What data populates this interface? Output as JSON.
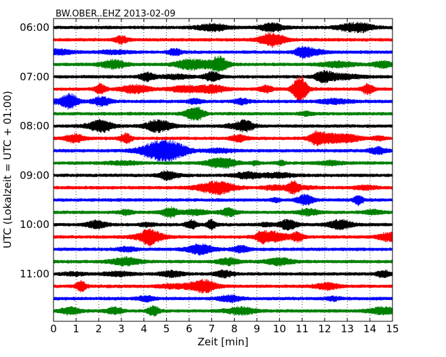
{
  "chart_data": {
    "type": "line",
    "title": "BW.OBER..EHZ 2013-02-09",
    "xlabel": "Zeit  [min]",
    "ylabel": "UTC (Lokalzeit = UTC + 01:00)",
    "xlim": [
      0,
      15
    ],
    "x_ticks": [
      0,
      1,
      2,
      3,
      4,
      5,
      6,
      7,
      8,
      9,
      10,
      11,
      12,
      13,
      14,
      15
    ],
    "y_tick_labels": [
      "06:00",
      "07:00",
      "08:00",
      "09:00",
      "10:00",
      "11:00"
    ],
    "trace_interval_minutes": 15,
    "trace_count": 24,
    "first_trace_start": "06:00",
    "grid": "vertical dotted",
    "colors": [
      "#000000",
      "#ff0000",
      "#0000ff",
      "#008000"
    ],
    "event": {
      "trace_start": "07:15",
      "minute": 10.9,
      "color": "#ff0000"
    }
  }
}
